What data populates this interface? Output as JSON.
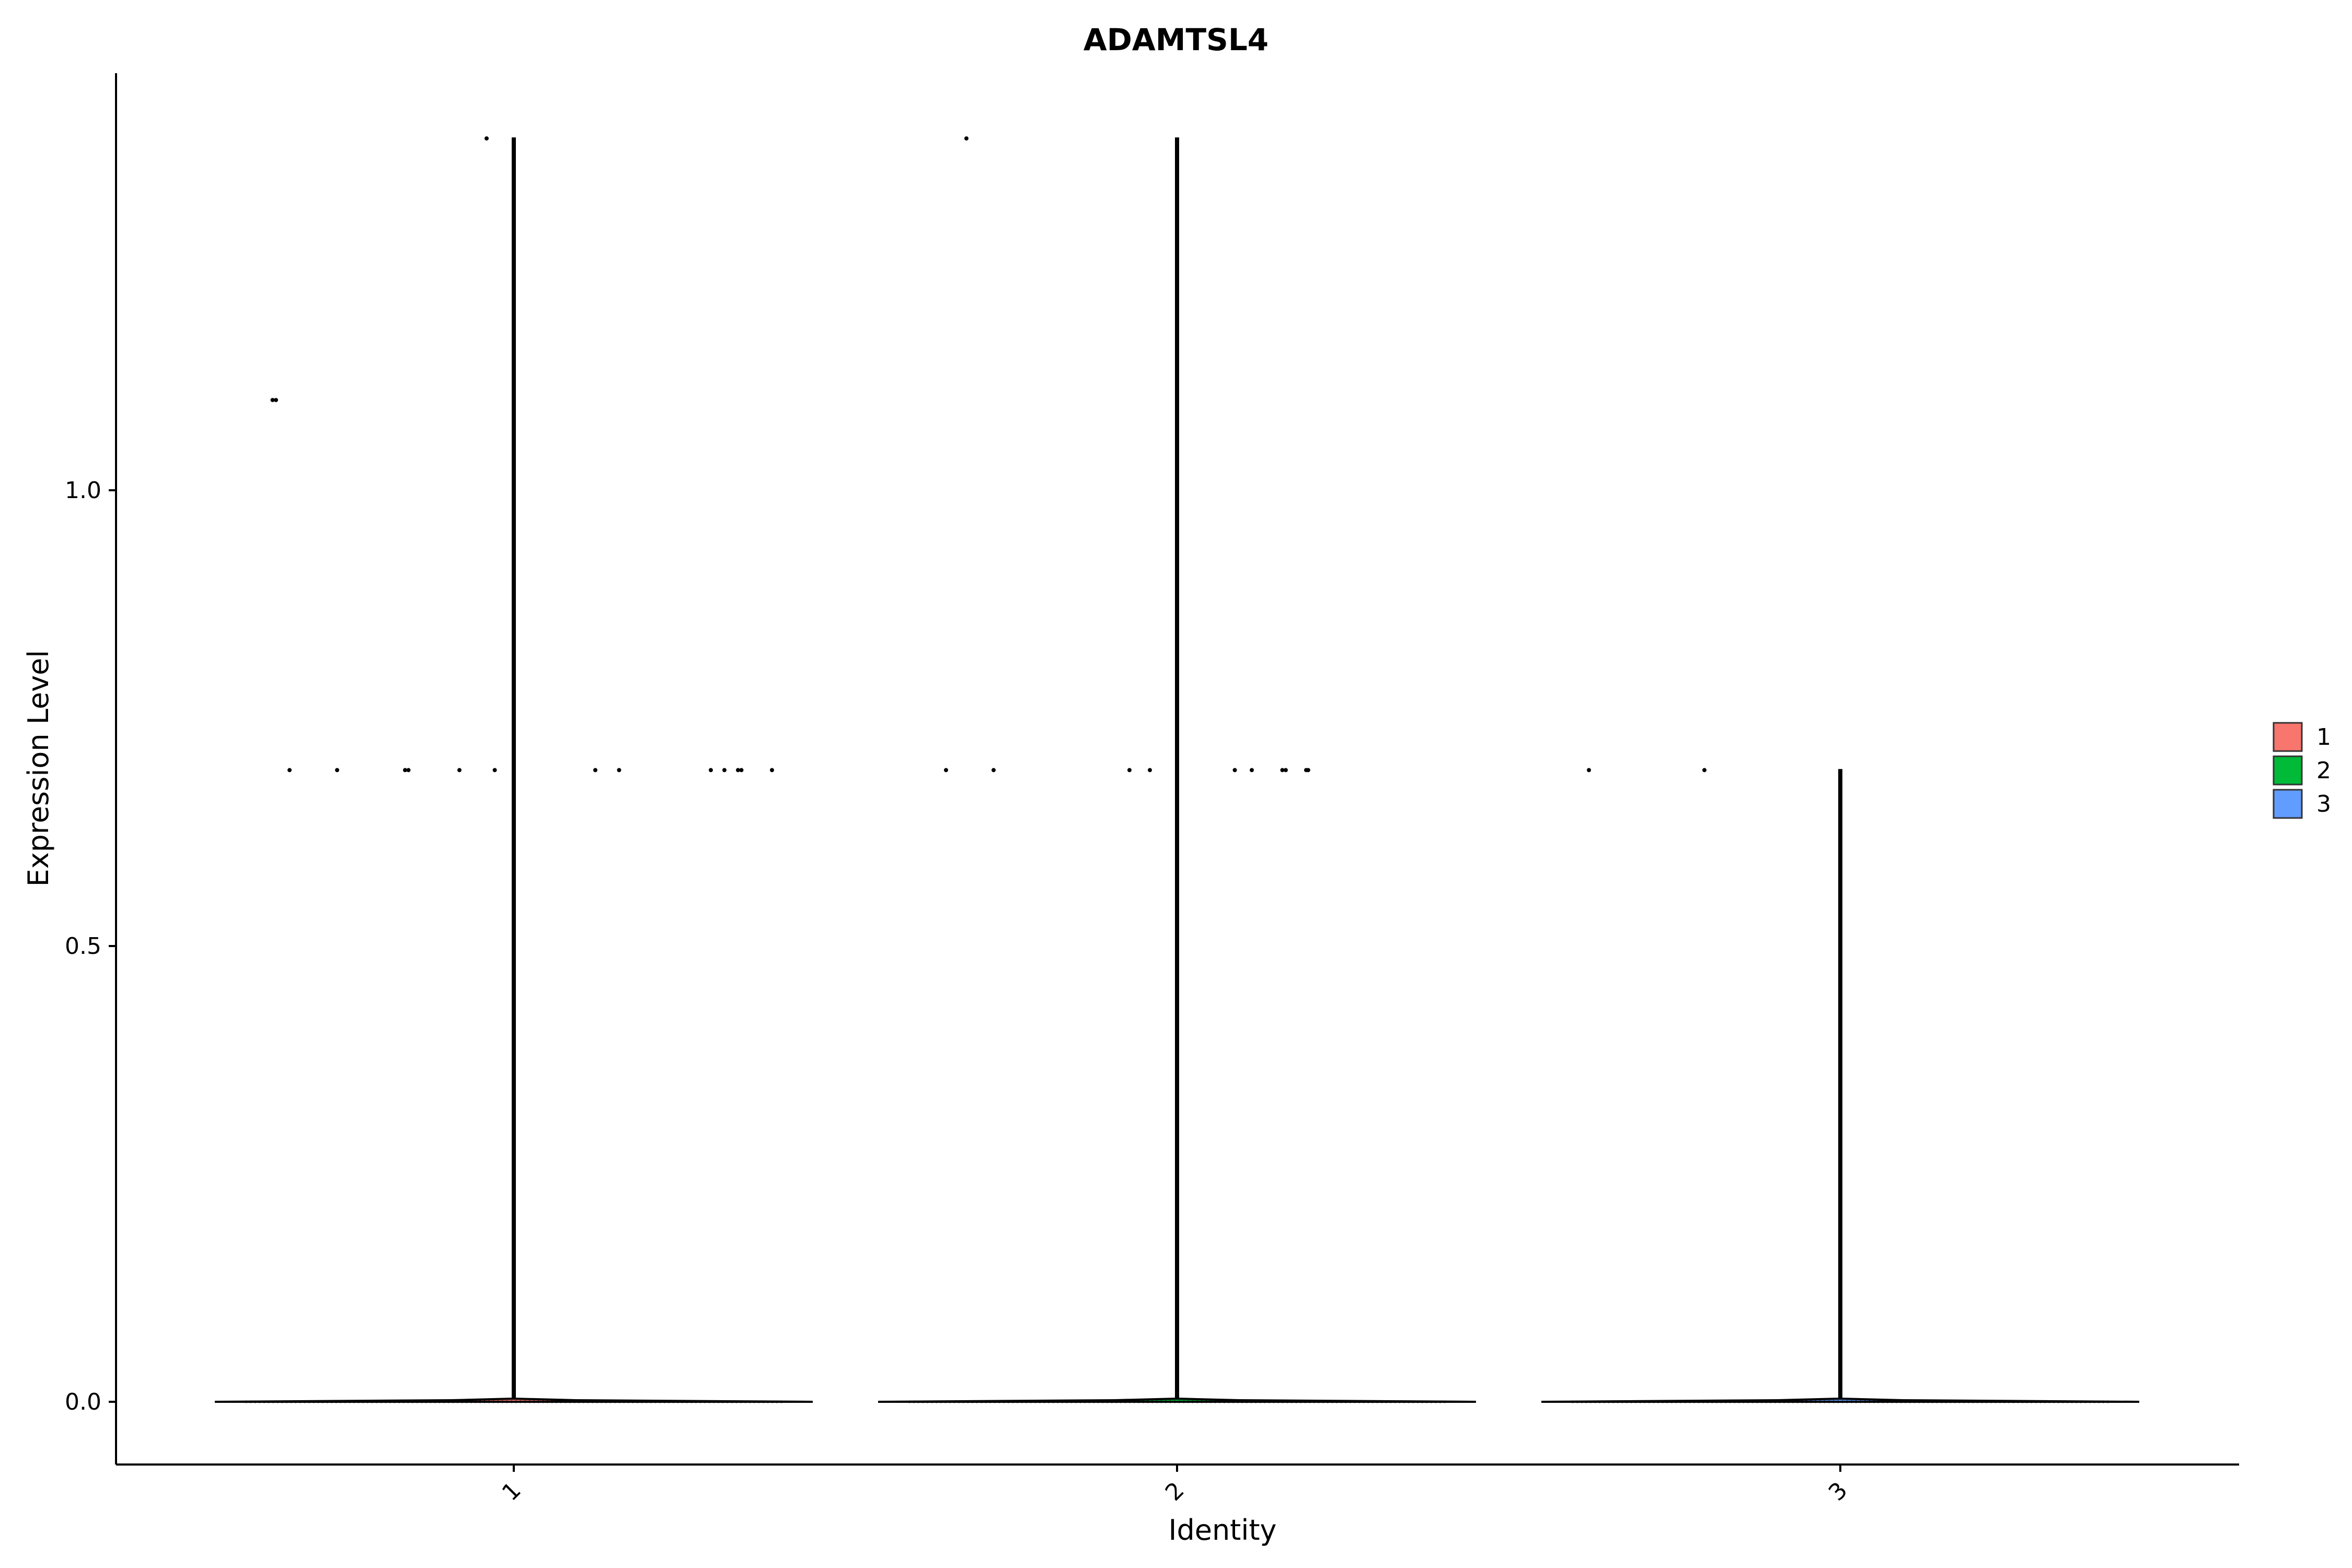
{
  "chart_data": {
    "type": "violin",
    "title": "ADAMTSL4",
    "xlabel": "Identity",
    "ylabel": "Expression Level",
    "categories": [
      "1",
      "2",
      "3"
    ],
    "ylim": [
      -0.07,
      1.4
    ],
    "yticks": [
      0.0,
      0.5,
      1.0
    ],
    "ytick_labels": [
      "0.0",
      "0.5",
      "1.0"
    ],
    "colors": {
      "1": "#F8766D",
      "2": "#00BA38",
      "3": "#619CFF"
    },
    "legend": {
      "position": "right",
      "entries": [
        "1",
        "2",
        "3"
      ]
    },
    "grid": false,
    "series": [
      {
        "category": "1",
        "max": 1.386,
        "median": 0.0,
        "points": [
          {
            "x": -0.04,
            "y": 1.386
          },
          {
            "x": -0.355,
            "y": 1.099
          },
          {
            "x": -0.35,
            "y": 1.099
          },
          {
            "x": -0.33,
            "y": 0.693
          },
          {
            "x": -0.26,
            "y": 0.693
          },
          {
            "x": -0.16,
            "y": 0.693
          },
          {
            "x": -0.155,
            "y": 0.693
          },
          {
            "x": -0.08,
            "y": 0.693
          },
          {
            "x": -0.028,
            "y": 0.693
          },
          {
            "x": 0.0,
            "y": 0.693
          },
          {
            "x": 0.12,
            "y": 0.693
          },
          {
            "x": 0.155,
            "y": 0.693
          },
          {
            "x": 0.29,
            "y": 0.693
          },
          {
            "x": 0.31,
            "y": 0.693
          },
          {
            "x": 0.33,
            "y": 0.693
          },
          {
            "x": 0.335,
            "y": 0.693
          },
          {
            "x": 0.38,
            "y": 0.693
          }
        ]
      },
      {
        "category": "2",
        "max": 1.386,
        "median": 0.0,
        "points": [
          {
            "x": -0.31,
            "y": 1.386
          },
          {
            "x": -0.34,
            "y": 0.693
          },
          {
            "x": -0.27,
            "y": 0.693
          },
          {
            "x": -0.07,
            "y": 0.693
          },
          {
            "x": -0.04,
            "y": 0.693
          },
          {
            "x": 0.0,
            "y": 0.693
          },
          {
            "x": 0.085,
            "y": 0.693
          },
          {
            "x": 0.11,
            "y": 0.693
          },
          {
            "x": 0.155,
            "y": 0.693
          },
          {
            "x": 0.16,
            "y": 0.693
          },
          {
            "x": 0.19,
            "y": 0.693
          },
          {
            "x": 0.193,
            "y": 0.693
          }
        ]
      },
      {
        "category": "3",
        "max": 0.693,
        "median": 0.0,
        "points": [
          {
            "x": -0.37,
            "y": 0.693
          },
          {
            "x": -0.2,
            "y": 0.693
          }
        ]
      }
    ]
  }
}
